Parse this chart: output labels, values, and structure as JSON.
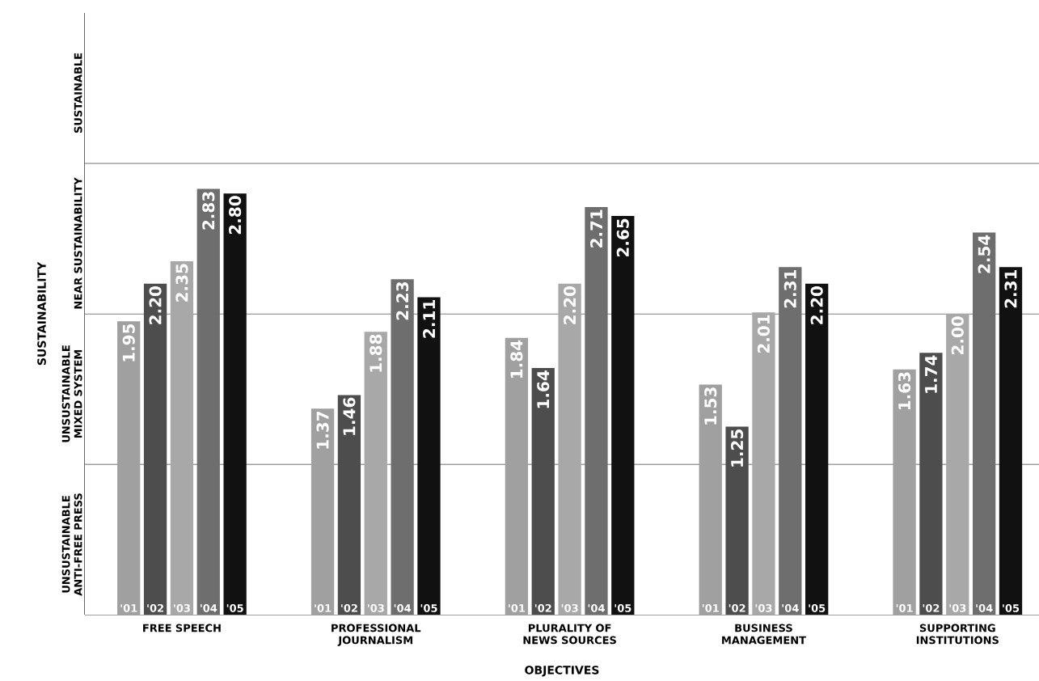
{
  "chart_data": {
    "type": "bar",
    "xlabel": "OBJECTIVES",
    "ylabel": "SUSTAINABILITY",
    "categories": [
      "FREE SPEECH",
      "PROFESSIONAL JOURNALISM",
      "PLURALITY OF NEWS SOURCES",
      "BUSINESS MANAGEMENT",
      "SUPPORTING INSTITUTIONS"
    ],
    "ylim": [
      0,
      4
    ],
    "bands": [
      {
        "axis": "y",
        "from": 0,
        "to": 1,
        "label": "UNSUSTAINABLE ANTI-FREE PRESS",
        "color": "#ffffff"
      },
      {
        "axis": "y",
        "from": 1,
        "to": 2,
        "label": "UNSUSTAINABLE MIXED SYSTEM",
        "color": "#ffffff"
      },
      {
        "axis": "y",
        "from": 2,
        "to": 3,
        "label": "NEAR SUSTAINABILITY",
        "color": "#ffffff"
      },
      {
        "axis": "y",
        "from": 3,
        "to": 4,
        "label": "SUSTAINABLE",
        "color": "#ffffff"
      }
    ],
    "series": [
      {
        "name": "'01",
        "color": "#a0a0a0",
        "values": [
          1.95,
          1.37,
          1.84,
          1.53,
          1.63
        ],
        "value_labels": [
          "1.95",
          "1.37",
          "1.84",
          "1.53",
          "1.63"
        ]
      },
      {
        "name": "'02",
        "color": "#4d4d4d",
        "values": [
          2.2,
          1.46,
          1.64,
          1.25,
          1.74
        ],
        "value_labels": [
          "2.20",
          "1.46",
          "1.64",
          "1.25",
          "1.74"
        ]
      },
      {
        "name": "'03",
        "color": "#a8a8a8",
        "values": [
          2.35,
          1.88,
          2.2,
          2.01,
          2.0
        ],
        "value_labels": [
          "2.35",
          "1.88",
          "2.20",
          "2.01",
          "2.00"
        ]
      },
      {
        "name": "'04",
        "color": "#6e6e6e",
        "values": [
          2.83,
          2.23,
          2.71,
          2.31,
          2.54
        ],
        "value_labels": [
          "2.83",
          "2.23",
          "2.71",
          "2.31",
          "2.54"
        ]
      },
      {
        "name": "'05",
        "color": "#111111",
        "values": [
          2.8,
          2.11,
          2.65,
          2.2,
          2.31
        ],
        "value_labels": [
          "2.80",
          "2.11",
          "2.65",
          "2.20",
          "2.31"
        ]
      }
    ]
  }
}
